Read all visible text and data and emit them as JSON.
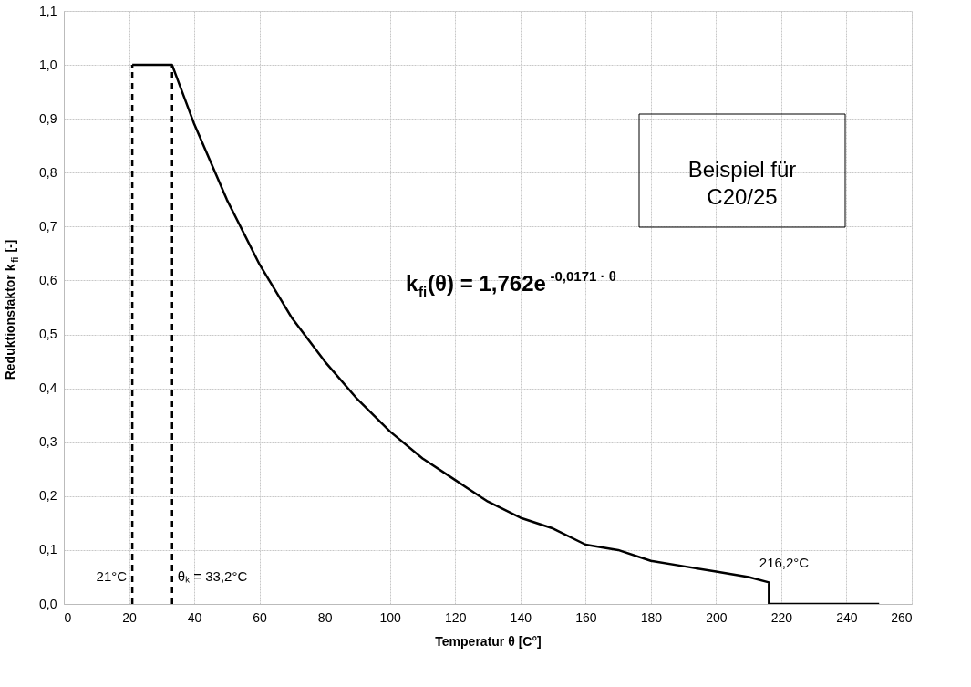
{
  "chart_data": {
    "type": "line",
    "xlabel": "Temperatur θ [C°]",
    "ylabel": "Reduktionsfaktor k$_{fi}$ [-]",
    "xlim": [
      0,
      260
    ],
    "xticks": [
      0,
      20,
      40,
      60,
      80,
      100,
      120,
      140,
      160,
      180,
      200,
      220,
      240,
      260
    ],
    "ylim": [
      0,
      1.1
    ],
    "yticks": [
      {
        "value": 0,
        "label": "0,0"
      },
      {
        "value": 0.1,
        "label": "0,1"
      },
      {
        "value": 0.2,
        "label": "0,2"
      },
      {
        "value": 0.3,
        "label": "0,3"
      },
      {
        "value": 0.4,
        "label": "0,4"
      },
      {
        "value": 0.5,
        "label": "0,5"
      },
      {
        "value": 0.6,
        "label": "0,6"
      },
      {
        "value": 0.7,
        "label": "0,7"
      },
      {
        "value": 0.8,
        "label": "0,8"
      },
      {
        "value": 0.9,
        "label": "0,9"
      },
      {
        "value": 1.0,
        "label": "1,0"
      },
      {
        "value": 1.1,
        "label": "1,1"
      }
    ],
    "grid": true,
    "series": [
      {
        "color": "#000000",
        "line_style": "solid",
        "x": [
          21,
          33.2,
          40,
          50,
          60,
          70,
          80,
          90,
          100,
          110,
          120,
          130,
          140,
          150,
          160,
          170,
          180,
          190,
          200,
          210,
          216.2,
          216.2,
          250
        ],
        "values": [
          1.0,
          1.0,
          0.89,
          0.75,
          0.63,
          0.53,
          0.45,
          0.38,
          0.32,
          0.27,
          0.23,
          0.19,
          0.16,
          0.14,
          0.11,
          0.1,
          0.08,
          0.07,
          0.06,
          0.05,
          0.04,
          0.0,
          0.0
        ]
      },
      {
        "color": "#000000",
        "line_style": "dashed",
        "x": [
          21,
          21
        ],
        "values": [
          0.0,
          1.0
        ]
      },
      {
        "color": "#000000",
        "line_style": "dashed",
        "x": [
          33.2,
          33.2
        ],
        "values": [
          0.0,
          1.0
        ]
      }
    ],
    "annotations": [
      {
        "text": "21°C",
        "x": 21,
        "y": 0.05
      },
      {
        "text": "θₖ = 33,2°C",
        "x": 33.2,
        "y": 0.05
      },
      "216,2°C",
      "k$_{fi}$(θ) = 1,762e$^{-0,0171 · θ}$",
      "Beispiel für\nC20/25"
    ]
  }
}
